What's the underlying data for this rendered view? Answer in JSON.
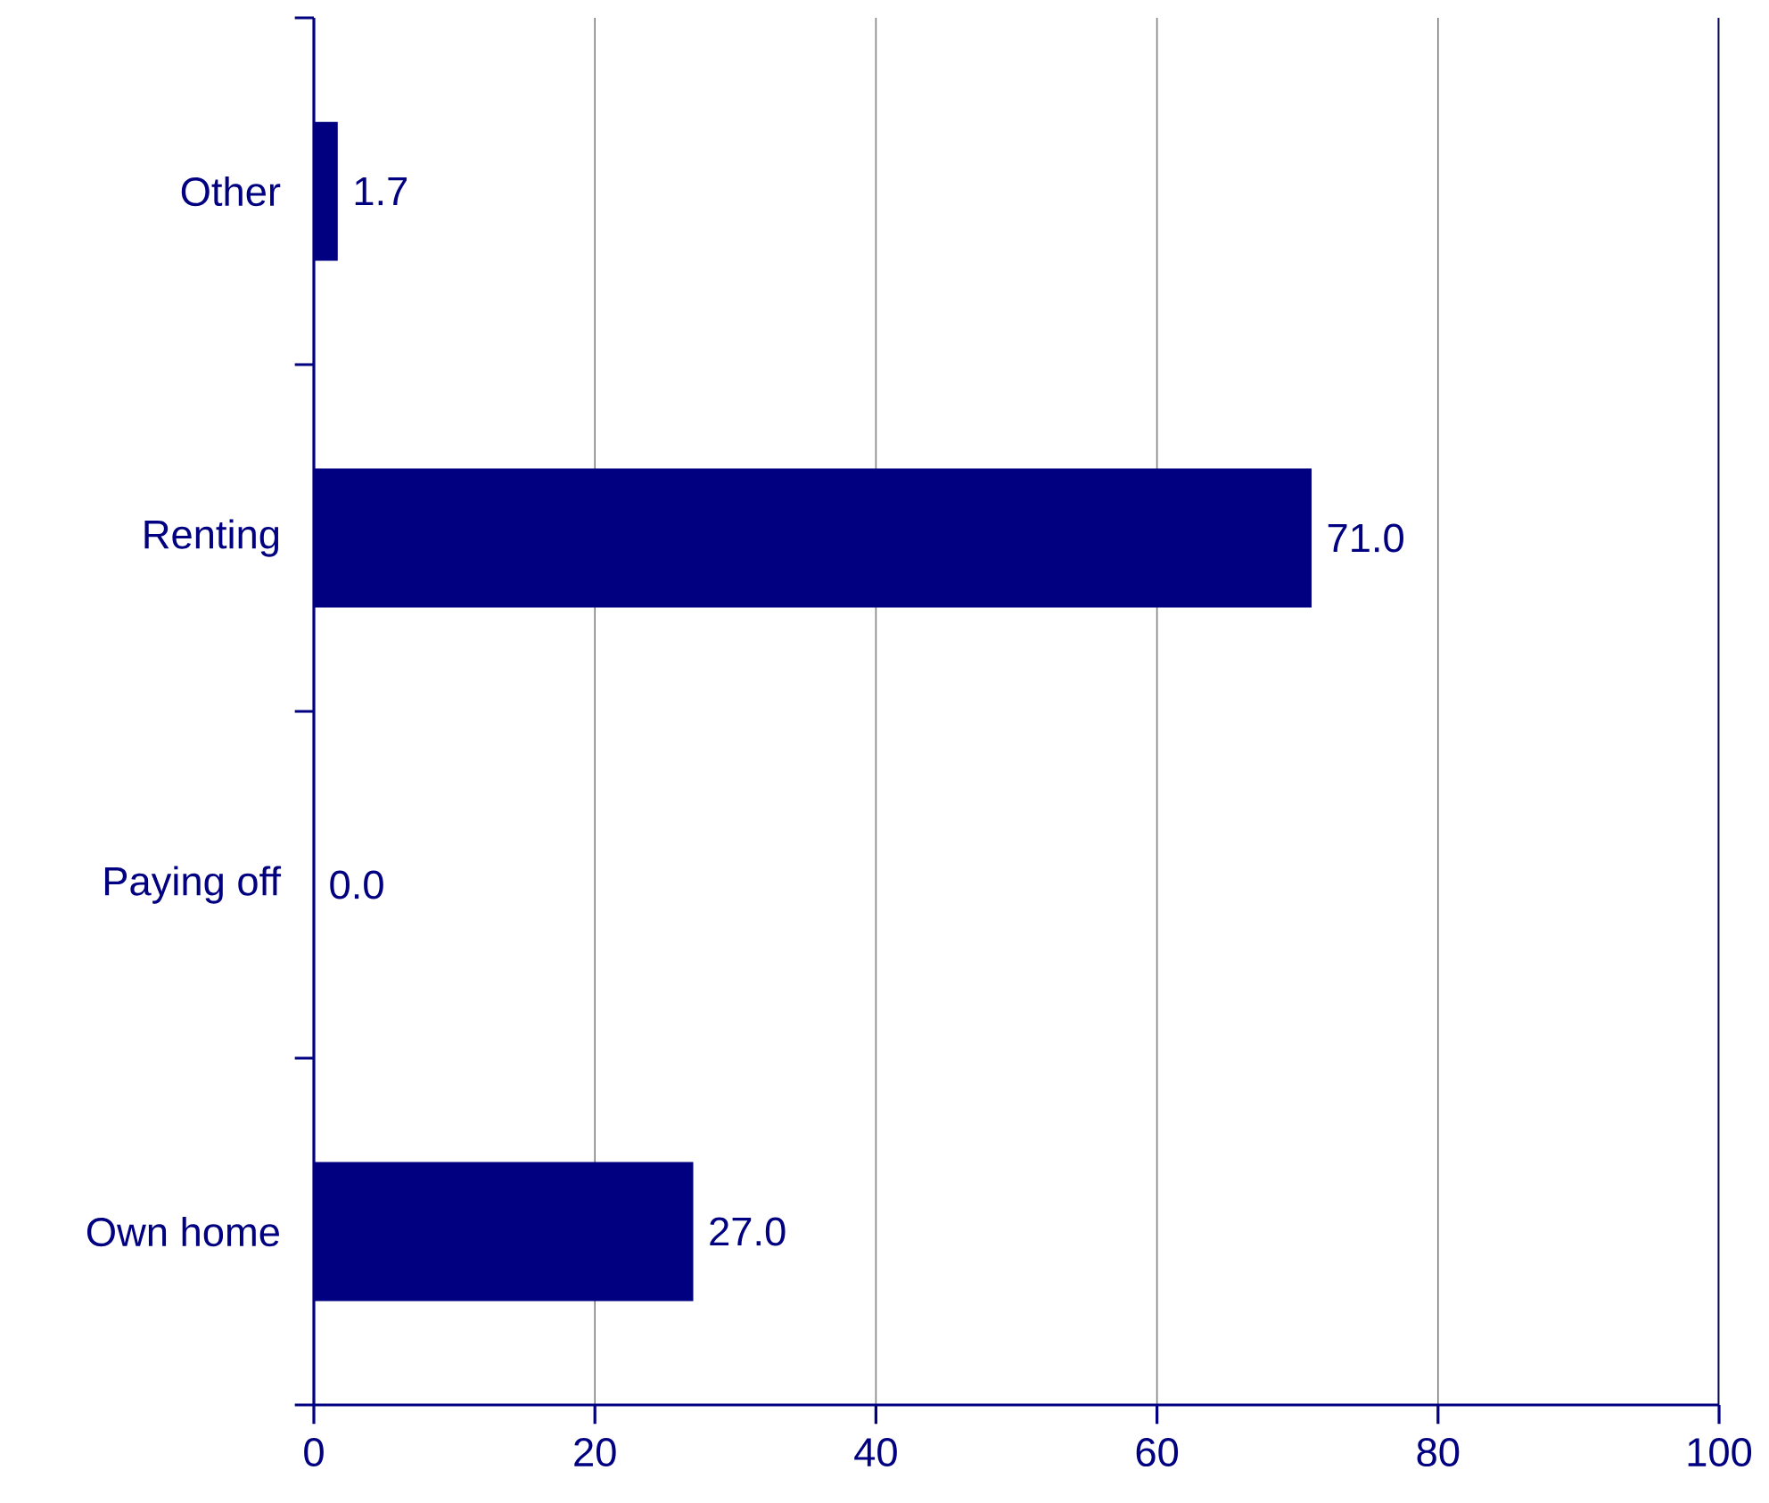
{
  "chart_data": {
    "type": "bar",
    "orientation": "horizontal",
    "categories": [
      "Other",
      "Renting",
      "Paying off",
      "Own home"
    ],
    "values": [
      1.7,
      71.0,
      0.0,
      27.0
    ],
    "value_labels": [
      "1.7",
      "71.0",
      "0.0",
      "27.0"
    ],
    "color": "#000080",
    "xlim": [
      0,
      100
    ],
    "xticks": [
      0,
      20,
      40,
      60,
      80,
      100
    ],
    "grid": "x"
  }
}
